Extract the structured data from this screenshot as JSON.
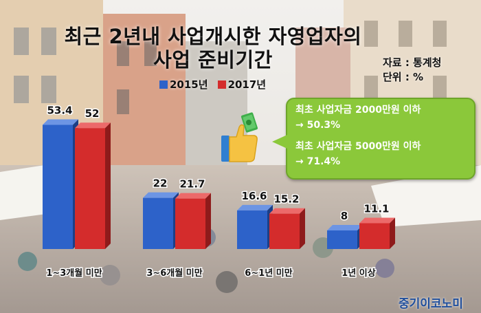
{
  "title": {
    "line1": "최근 2년내 사업개시한 자영업자의",
    "line2": "사업 준비기간"
  },
  "source": "자료 : 통계청",
  "unit": "단위 : %",
  "legend": [
    {
      "label": "2015년",
      "color": "#2d62c9"
    },
    {
      "label": "2017년",
      "color": "#d42c2c"
    }
  ],
  "callout": {
    "line1": "최초 사업자금 2000만원 이하",
    "line2": "→ 50.3%",
    "line3": "최초 사업자금 5000만원 이하",
    "line4": "→ 71.4%"
  },
  "brand": "중기이코노미",
  "icons": [
    "thumbs-up-money-icon"
  ],
  "colors": {
    "blue": "#2d62c9",
    "red": "#d42c2c",
    "callout_green": "#8bc83a",
    "brand_blue": "#1f4e9c"
  },
  "chart_data": {
    "type": "bar",
    "title": "최근 2년내 사업개시한 자영업자의 사업 준비기간",
    "categories": [
      "1~3개월 미만",
      "3~6개월 미만",
      "6~1년 미만",
      "1년 이상"
    ],
    "series": [
      {
        "name": "2015년",
        "values": [
          53.4,
          22,
          16.6,
          8
        ]
      },
      {
        "name": "2017년",
        "values": [
          52,
          21.7,
          15.2,
          11.1
        ]
      }
    ],
    "value_labels": [
      [
        "53.4",
        "22",
        "16.6",
        "8"
      ],
      [
        "52",
        "21.7",
        "15.2",
        "11.1"
      ]
    ],
    "ylim": [
      0,
      60
    ],
    "xlabel": "",
    "ylabel": "",
    "grid": false,
    "legend": "top"
  }
}
